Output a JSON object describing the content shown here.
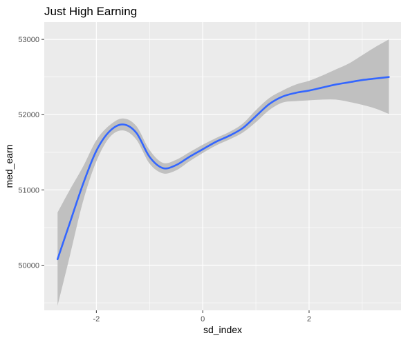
{
  "chart_data": {
    "type": "line",
    "title": "Just High Earning",
    "xlabel": "sd_index",
    "ylabel": "med_earn",
    "xlim": [
      -2.98,
      3.73
    ],
    "ylim": [
      49400,
      53230
    ],
    "x_ticks": [
      -2,
      0,
      2
    ],
    "x_tick_labels": [
      "-2",
      "0",
      "2"
    ],
    "y_ticks": [
      50000,
      51000,
      52000,
      53000
    ],
    "y_tick_labels": [
      "50000",
      "51000",
      "52000",
      "53000"
    ],
    "grid": true,
    "legend": "none",
    "series": [
      {
        "kind": "smooth",
        "x": [
          -2.73,
          -2.5,
          -2.25,
          -2.0,
          -1.75,
          -1.5,
          -1.25,
          -1.0,
          -0.75,
          -0.5,
          -0.25,
          0.0,
          0.25,
          0.5,
          0.75,
          1.0,
          1.25,
          1.5,
          1.75,
          2.0,
          2.25,
          2.5,
          2.75,
          3.0,
          3.25,
          3.5
        ],
        "y": [
          50080,
          50560,
          51080,
          51520,
          51780,
          51870,
          51760,
          51440,
          51290,
          51330,
          51440,
          51540,
          51640,
          51720,
          51820,
          51980,
          52140,
          52240,
          52290,
          52320,
          52360,
          52400,
          52430,
          52460,
          52480,
          52500
        ],
        "lower": [
          49460,
          50120,
          50850,
          51380,
          51700,
          51790,
          51670,
          51350,
          51220,
          51260,
          51380,
          51490,
          51590,
          51670,
          51760,
          51900,
          52060,
          52160,
          52180,
          52190,
          52200,
          52200,
          52170,
          52130,
          52080,
          52010
        ],
        "upper": [
          50700,
          51000,
          51310,
          51660,
          51860,
          51950,
          51850,
          51530,
          51360,
          51400,
          51500,
          51600,
          51690,
          51770,
          51880,
          52060,
          52220,
          52320,
          52400,
          52450,
          52520,
          52600,
          52680,
          52790,
          52900,
          53000
        ]
      }
    ],
    "colors": {
      "line": "#3366ff",
      "ribbon": "#bebebe",
      "panel": "#ebebeb",
      "grid": "#ffffff"
    }
  }
}
